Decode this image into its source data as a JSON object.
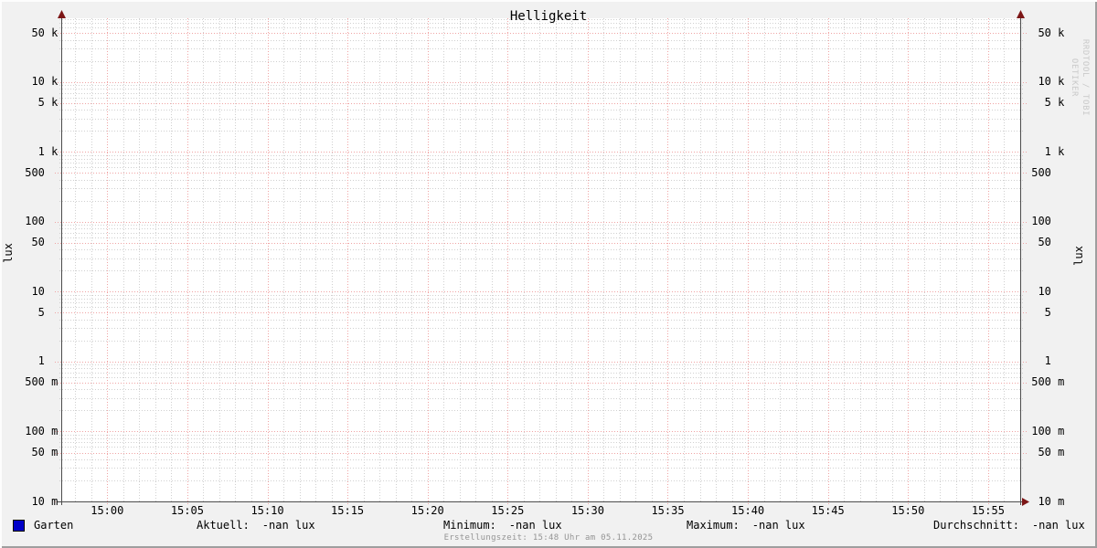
{
  "chart_data": {
    "type": "line",
    "title": "Helligkeit",
    "ylabel_left": "lux",
    "ylabel_right": "lux",
    "yscale": "log",
    "ylim": [
      0.01,
      82000
    ],
    "grid": true,
    "legend_position": "bottom",
    "x_ticks": [
      "15:00",
      "15:05",
      "15:10",
      "15:15",
      "15:20",
      "15:25",
      "15:30",
      "15:35",
      "15:40",
      "15:45",
      "15:50",
      "15:55"
    ],
    "y_ticks": [
      {
        "num": "10",
        "unit": "m",
        "value": 0.01
      },
      {
        "num": "50",
        "unit": "m",
        "value": 0.05
      },
      {
        "num": "100",
        "unit": "m",
        "value": 0.1
      },
      {
        "num": "500",
        "unit": "m",
        "value": 0.5
      },
      {
        "num": "1",
        "unit": "",
        "value": 1
      },
      {
        "num": "5",
        "unit": "",
        "value": 5
      },
      {
        "num": "10",
        "unit": "",
        "value": 10
      },
      {
        "num": "50",
        "unit": "",
        "value": 50
      },
      {
        "num": "100",
        "unit": "",
        "value": 100
      },
      {
        "num": "500",
        "unit": "",
        "value": 500
      },
      {
        "num": "1",
        "unit": "k",
        "value": 1000
      },
      {
        "num": "5",
        "unit": "k",
        "value": 5000
      },
      {
        "num": "10",
        "unit": "k",
        "value": 10000
      },
      {
        "num": "50",
        "unit": "k",
        "value": 50000
      }
    ],
    "series": [
      {
        "name": "Garten",
        "color": "#0000c8",
        "values": []
      }
    ]
  },
  "legend": {
    "stats": [
      {
        "label": "Aktuell:",
        "value": "-nan lux"
      },
      {
        "label": "Minimum:",
        "value": "-nan lux"
      },
      {
        "label": "Maximum:",
        "value": "-nan lux"
      },
      {
        "label": "Durchschnitt:",
        "value": "-nan lux"
      }
    ]
  },
  "footer": "Erstellungszeit: 15:48 Uhr am 05.11.2025",
  "watermark": "RRDTOOL / TOBI OETIKER",
  "colors": {
    "background": "#f1f1f1",
    "canvas": "#ffffff",
    "major_grid": "#f0a4a4",
    "minor_grid": "#d0d0d0",
    "axis": "#4d4d4d",
    "arrow": "#7c1616",
    "series": "#0000c8"
  }
}
